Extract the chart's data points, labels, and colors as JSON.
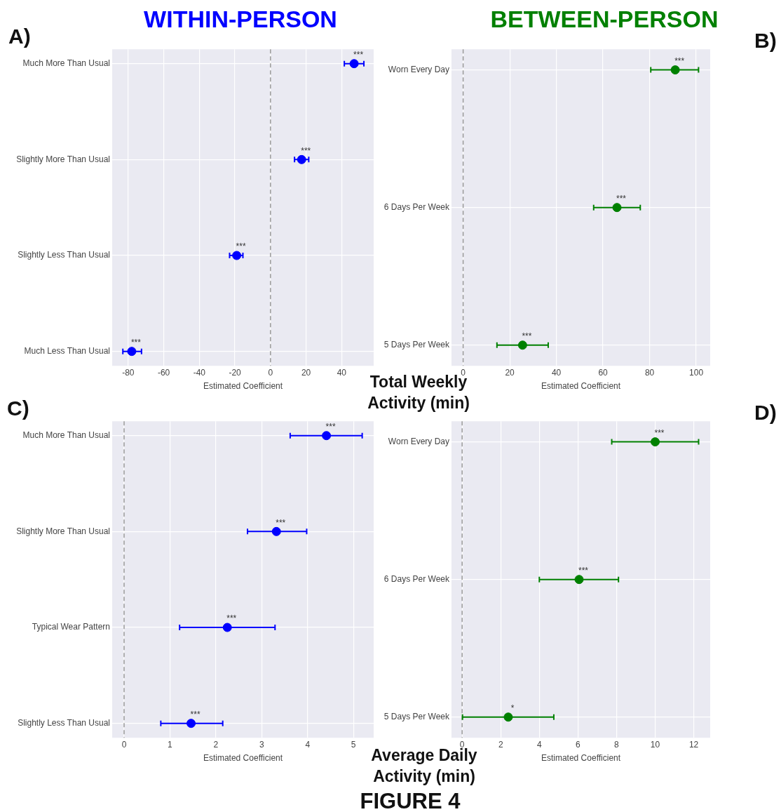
{
  "chart_data": [
    {
      "type": "scatter",
      "orientation": "horizontal",
      "title": "WITHIN-PERSON",
      "xlabel": "Estimated Coefficient",
      "color": "#0000ff",
      "marker": "circle",
      "grid": true,
      "legend": false,
      "categories": [
        "Much More Than Usual",
        "Slightly More Than Usual",
        "Slightly Less Than Usual",
        "Much Less Than Usual"
      ],
      "values": [
        47,
        17.5,
        -19,
        -78
      ],
      "errors": [
        [
          41.5,
          52.5
        ],
        [
          13.5,
          21.5
        ],
        [
          -23,
          -15.5
        ],
        [
          -83,
          -72.5
        ]
      ],
      "xlim": [
        -89,
        58
      ],
      "xticks": [
        -80,
        -60,
        -40,
        -20,
        0,
        20,
        40
      ],
      "ref_lines": [
        {
          "axis": "x",
          "value": 0,
          "color": "#999999",
          "line_style": "dashed"
        }
      ],
      "annotations": [
        "A)",
        "Total Weekly Activity (min)",
        {
          "text": "***",
          "x": 47,
          "y": "Much More Than Usual"
        },
        {
          "text": "***",
          "x": 17.5,
          "y": "Slightly More Than Usual"
        },
        {
          "text": "***",
          "x": -19,
          "y": "Slightly Less Than Usual"
        },
        {
          "text": "***",
          "x": -78,
          "y": "Much Less Than Usual"
        }
      ]
    },
    {
      "type": "scatter",
      "orientation": "horizontal",
      "title": "BETWEEN-PERSON",
      "xlabel": "Estimated Coefficient",
      "color": "#008000",
      "marker": "circle",
      "grid": true,
      "legend": false,
      "categories": [
        "Worn Every Day",
        "6 Days Per Week",
        "5 Days Per Week"
      ],
      "values": [
        91,
        66,
        25.5
      ],
      "errors": [
        [
          80.5,
          101
        ],
        [
          56,
          76
        ],
        [
          14.5,
          36.5
        ]
      ],
      "xlim": [
        -5,
        106
      ],
      "xticks": [
        0,
        20,
        40,
        60,
        80,
        100
      ],
      "ref_lines": [
        {
          "axis": "x",
          "value": 0,
          "color": "#999999",
          "line_style": "dashed"
        }
      ],
      "annotations": [
        "B)",
        {
          "text": "***",
          "x": 91,
          "y": "Worn Every Day"
        },
        {
          "text": "***",
          "x": 66,
          "y": "6 Days Per Week"
        },
        {
          "text": "***",
          "x": 25.5,
          "y": "5 Days Per Week"
        }
      ]
    },
    {
      "type": "scatter",
      "orientation": "horizontal",
      "xlabel": "Estimated Coefficient",
      "color": "#0000ff",
      "marker": "circle",
      "grid": true,
      "legend": false,
      "categories": [
        "Much More Than Usual",
        "Slightly More Than Usual",
        "Typical Wear Pattern",
        "Slightly Less Than Usual"
      ],
      "values": [
        4.41,
        3.32,
        2.25,
        1.46
      ],
      "errors": [
        [
          3.62,
          5.19
        ],
        [
          2.69,
          3.98
        ],
        [
          1.21,
          3.29
        ],
        [
          0.8,
          2.15
        ]
      ],
      "xlim": [
        -0.26,
        5.44
      ],
      "xticks": [
        0,
        1,
        2,
        3,
        4,
        5
      ],
      "ref_lines": [
        {
          "axis": "x",
          "value": 0,
          "color": "#999999",
          "line_style": "dashed"
        }
      ],
      "annotations": [
        "C)",
        "Average Daily Activity (min)",
        "FIGURE 4",
        {
          "text": "***",
          "x": 4.41,
          "y": "Much More Than Usual"
        },
        {
          "text": "***",
          "x": 3.32,
          "y": "Slightly More Than Usual"
        },
        {
          "text": "***",
          "x": 2.25,
          "y": "Typical Wear Pattern"
        },
        {
          "text": "***",
          "x": 1.46,
          "y": "Slightly Less Than Usual"
        }
      ]
    },
    {
      "type": "scatter",
      "orientation": "horizontal",
      "xlabel": "Estimated Coefficient",
      "color": "#008000",
      "marker": "circle",
      "grid": true,
      "legend": false,
      "categories": [
        "Worn Every Day",
        "6 Days Per Week",
        "5 Days Per Week"
      ],
      "values": [
        10,
        6.06,
        2.39
      ],
      "errors": [
        [
          7.75,
          12.25
        ],
        [
          4,
          8.1
        ],
        [
          0.02,
          4.75
        ]
      ],
      "xlim": [
        -0.55,
        12.85
      ],
      "xticks": [
        0,
        2,
        4,
        6,
        8,
        10,
        12
      ],
      "ref_lines": [
        {
          "axis": "x",
          "value": 0,
          "color": "#999999",
          "line_style": "dashed"
        }
      ],
      "annotations": [
        "D)",
        {
          "text": "***",
          "x": 10,
          "y": "Worn Every Day"
        },
        {
          "text": "***",
          "x": 6.06,
          "y": "6 Days Per Week"
        },
        {
          "text": "*",
          "x": 2.39,
          "y": "5 Days Per Week"
        }
      ]
    }
  ]
}
